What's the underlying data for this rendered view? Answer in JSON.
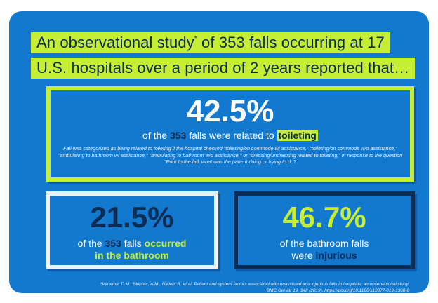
{
  "headline": {
    "line1_a": "An observational study",
    "line1_sup": "*",
    "line1_b": " of 353 falls occurring at 17",
    "line2": "U.S. hospitals over a period of 2 years reported that…"
  },
  "main_stat": {
    "value": "42.5%",
    "text_a": "of the ",
    "count": "353",
    "text_b": " falls were related to ",
    "highlight": "toileting",
    "note": "Fall was categorized as being related to toileting if the hospital checked \"toileting/on commode w/ assistance,\" \"toileting/on commode w/o assistance,\" \"ambulating to bathroom w/ assistance,\" \"ambulating to bathroom w/o assistance,\" or \"dressing/undressing related to toileting,\" in response to the question \"Prior to the fall, what was the patient doing or trying to do?"
  },
  "left_stat": {
    "value": "21.5%",
    "text_a": "of the ",
    "count": "353",
    "text_b": " falls ",
    "highlight_a": "occurred",
    "highlight_b": "in the bathroom"
  },
  "right_stat": {
    "value": "46.7%",
    "line1": "of the bathroom falls",
    "line2_a": "were ",
    "highlight": "injurious"
  },
  "citation": {
    "line1": "*Venema, D.M., Skinner, A.M., Nailon, R. et al. Patient and system factors associated with unassisted and injurious falls in hospitals: an observational study.",
    "line2": "BMC Geriatr 19, 348 (2019). https://doi.org/10.1186/s12877-019-1368-8"
  },
  "colors": {
    "background": "#1379cf",
    "lime": "#c6ee35",
    "navy": "#0b2d55",
    "white": "#ffffff"
  }
}
